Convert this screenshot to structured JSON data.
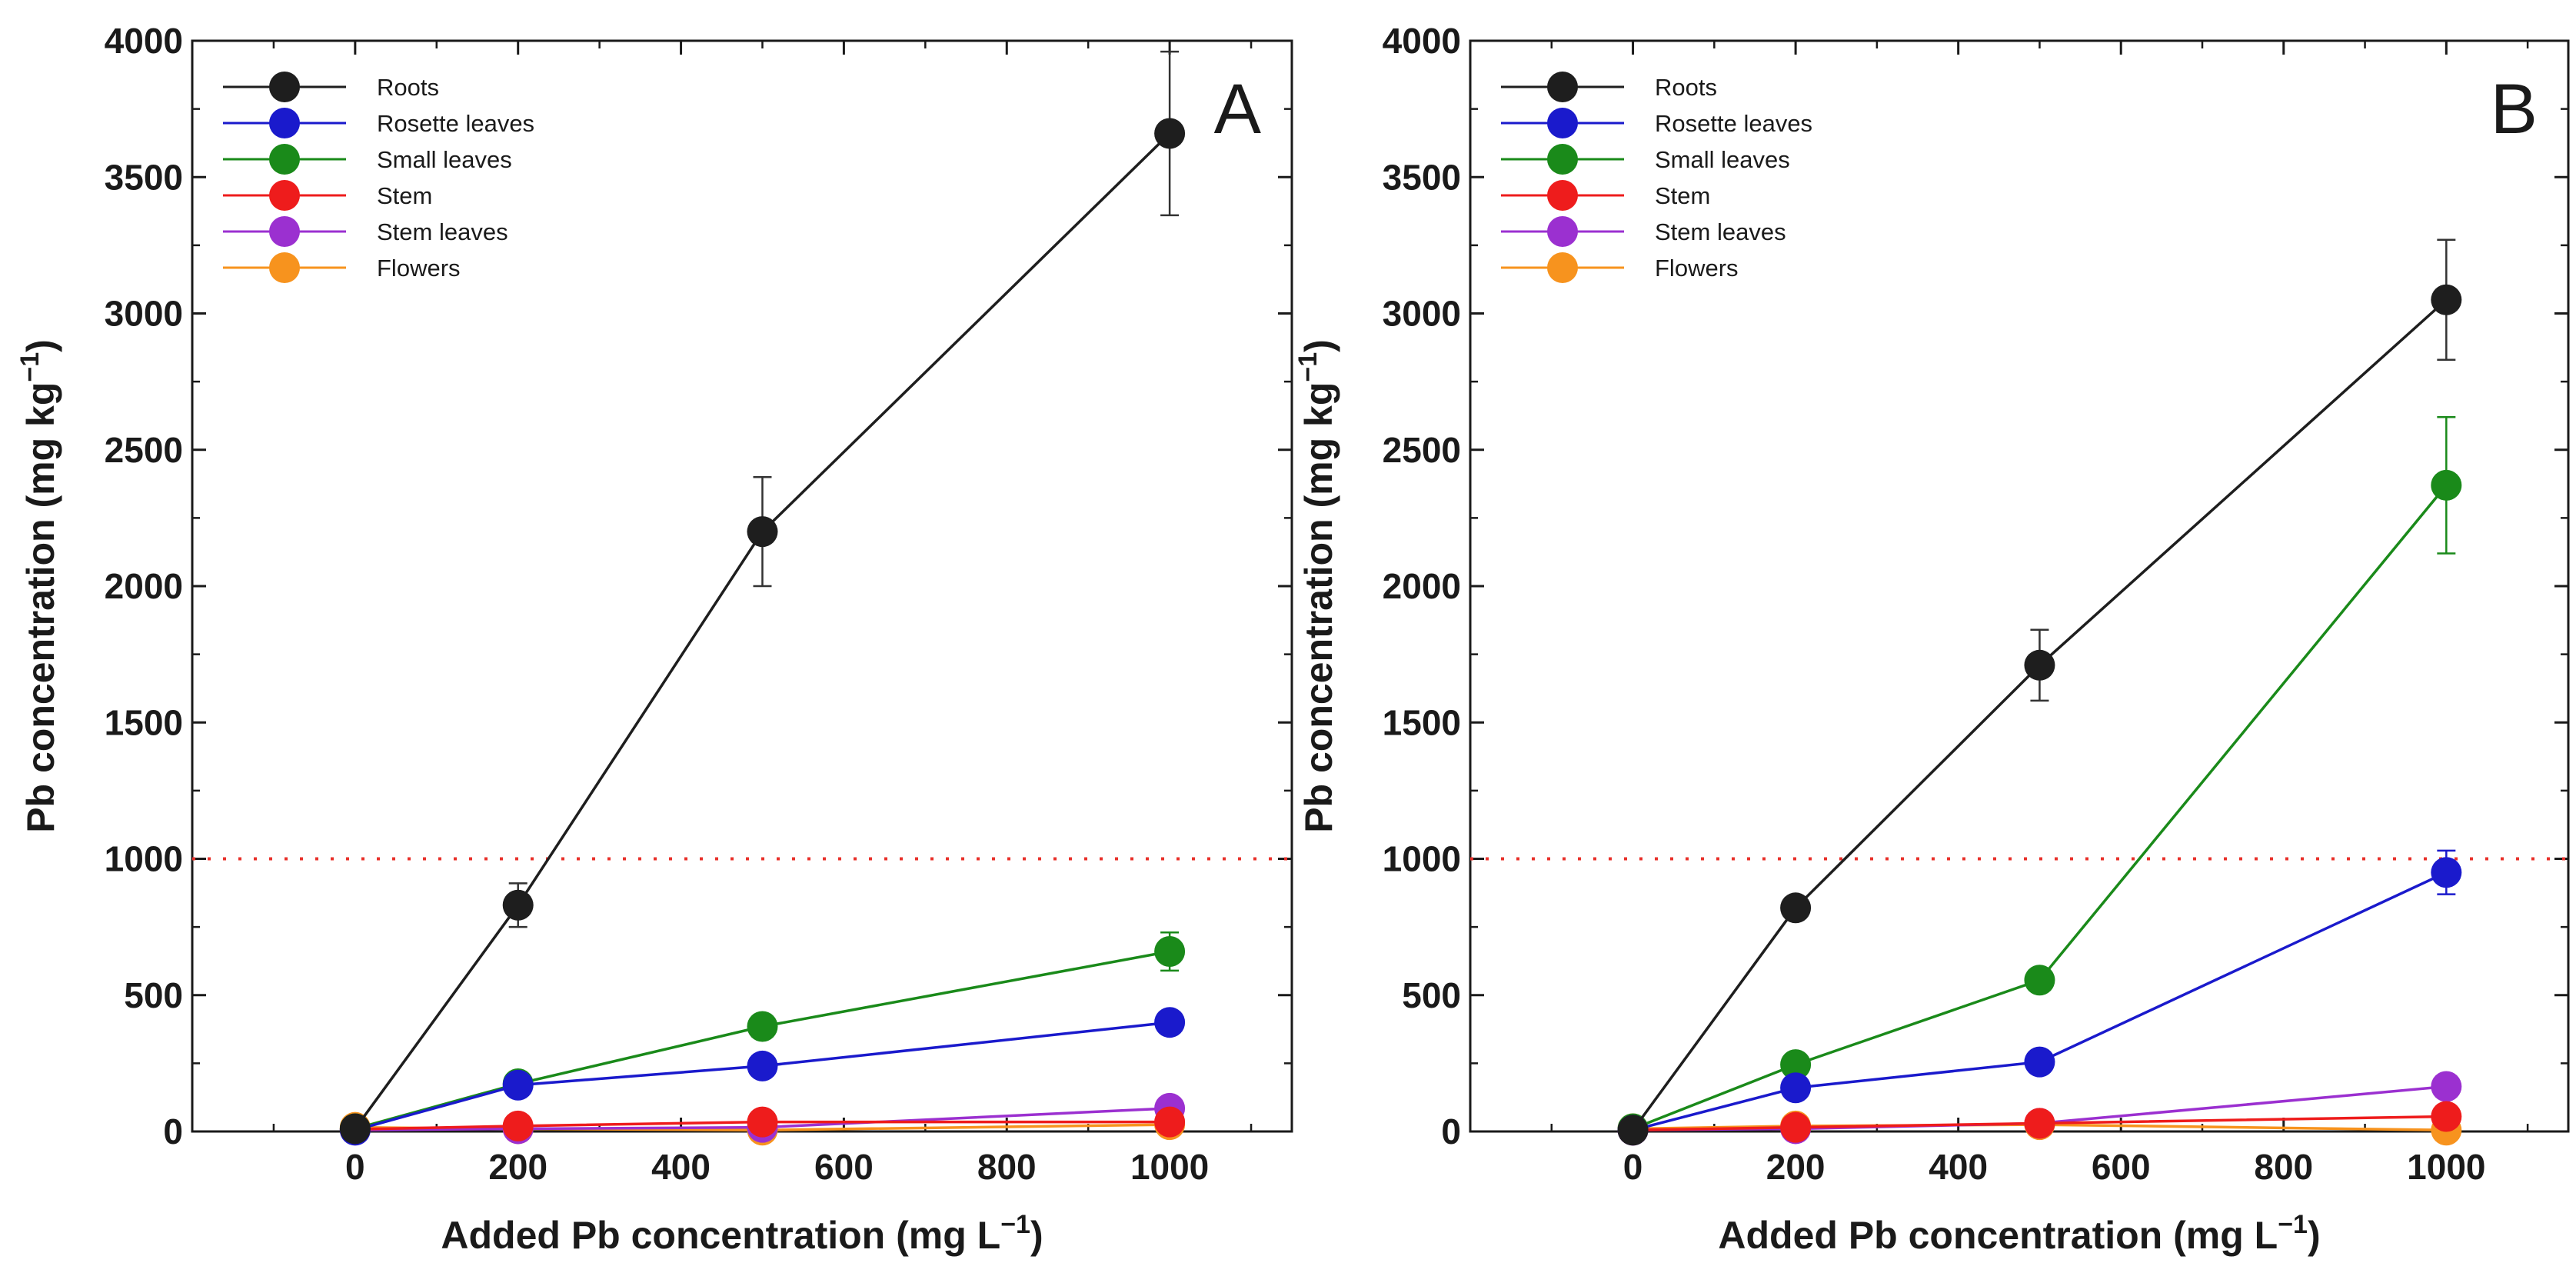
{
  "chart_data": [
    {
      "type": "line",
      "panel_label": "A",
      "xlabel": "Added Pb concentration (mg L",
      "xlabel_sup": "−1",
      "xlabel_end": ")",
      "ylabel": "Pb concentration (mg kg",
      "ylabel_sup": "−1",
      "ylabel_end": ")",
      "xlim": [
        -200,
        1150
      ],
      "ylim": [
        0,
        4000
      ],
      "xticks": [
        0,
        200,
        400,
        600,
        800,
        1000
      ],
      "yticks": [
        0,
        500,
        1000,
        1500,
        2000,
        2500,
        3000,
        3500,
        4000
      ],
      "reference_line": {
        "y": 1000,
        "color": "#e8302a",
        "style": "dotted"
      },
      "legend_position": "top-left",
      "x": [
        0,
        200,
        500,
        1000
      ],
      "series": [
        {
          "name": "Roots",
          "color": "#1e1e1e",
          "values": [
            10,
            830,
            2200,
            3660
          ],
          "errors": [
            0,
            80,
            200,
            300
          ]
        },
        {
          "name": "Rosette leaves",
          "color": "#1a1acc",
          "values": [
            5,
            170,
            240,
            400
          ],
          "errors": [
            0,
            15,
            15,
            20
          ]
        },
        {
          "name": "Small leaves",
          "color": "#1a8a1a",
          "values": [
            10,
            175,
            385,
            660
          ],
          "errors": [
            0,
            15,
            20,
            70
          ]
        },
        {
          "name": "Stem",
          "color": "#ee1c1c",
          "values": [
            8,
            20,
            35,
            35
          ],
          "errors": [
            0,
            0,
            0,
            0
          ]
        },
        {
          "name": "Stem leaves",
          "color": "#9b30d0",
          "values": [
            5,
            10,
            15,
            85
          ],
          "errors": [
            0,
            0,
            0,
            10
          ]
        },
        {
          "name": "Flowers",
          "color": "#f7931e",
          "values": [
            15,
            10,
            5,
            25
          ],
          "errors": [
            0,
            0,
            0,
            0
          ]
        }
      ]
    },
    {
      "type": "line",
      "panel_label": "B",
      "xlabel": "Added Pb concentration (mg L",
      "xlabel_sup": "−1",
      "xlabel_end": ")",
      "ylabel": "Pb concentration (mg kg",
      "ylabel_sup": "−1",
      "ylabel_end": ")",
      "xlim": [
        -200,
        1150
      ],
      "ylim": [
        0,
        4000
      ],
      "xticks": [
        0,
        200,
        400,
        600,
        800,
        1000
      ],
      "yticks": [
        0,
        500,
        1000,
        1500,
        2000,
        2500,
        3000,
        3500,
        4000
      ],
      "reference_line": {
        "y": 1000,
        "color": "#e8302a",
        "style": "dotted"
      },
      "legend_position": "top-left",
      "x": [
        0,
        200,
        500,
        1000
      ],
      "series": [
        {
          "name": "Roots",
          "color": "#1e1e1e",
          "values": [
            5,
            820,
            1710,
            3050
          ],
          "errors": [
            0,
            0,
            130,
            220
          ]
        },
        {
          "name": "Rosette leaves",
          "color": "#1a1acc",
          "values": [
            5,
            160,
            255,
            950
          ],
          "errors": [
            0,
            0,
            0,
            80
          ]
        },
        {
          "name": "Small leaves",
          "color": "#1a8a1a",
          "values": [
            10,
            245,
            555,
            2370
          ],
          "errors": [
            0,
            0,
            0,
            250
          ]
        },
        {
          "name": "Stem",
          "color": "#ee1c1c",
          "values": [
            5,
            15,
            30,
            55
          ],
          "errors": [
            0,
            0,
            0,
            0
          ]
        },
        {
          "name": "Stem leaves",
          "color": "#9b30d0",
          "values": [
            5,
            10,
            30,
            165
          ],
          "errors": [
            0,
            0,
            0,
            0
          ]
        },
        {
          "name": "Flowers",
          "color": "#f7931e",
          "values": [
            10,
            20,
            25,
            5
          ],
          "errors": [
            0,
            0,
            0,
            0
          ]
        }
      ]
    }
  ]
}
